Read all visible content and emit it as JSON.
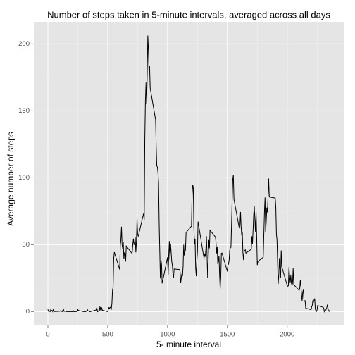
{
  "chart_data": {
    "type": "line",
    "title": "Number of steps taken in 5-minute intervals, averaged across all days",
    "x_label": "5- minute interval",
    "y_label": "Average number of steps",
    "color": "#000000",
    "grid": true,
    "xlim": [
      -117.75,
      2472.75
    ],
    "ylim": [
      -10.3,
      216.5
    ],
    "xticks": [
      0,
      500,
      1000,
      1500,
      2000
    ],
    "yticks": [
      0,
      50,
      100,
      150,
      200
    ],
    "xminor": [
      250,
      750,
      1250,
      1750,
      2250
    ],
    "yminor": [
      25,
      75,
      125,
      175
    ],
    "x": [
      0,
      5,
      10,
      15,
      20,
      25,
      30,
      35,
      40,
      45,
      50,
      55,
      100,
      105,
      110,
      115,
      120,
      125,
      130,
      135,
      140,
      145,
      150,
      155,
      200,
      205,
      210,
      215,
      220,
      225,
      230,
      235,
      240,
      245,
      250,
      255,
      300,
      305,
      310,
      315,
      320,
      325,
      330,
      335,
      340,
      345,
      350,
      355,
      400,
      405,
      410,
      415,
      420,
      425,
      430,
      435,
      440,
      445,
      450,
      455,
      500,
      505,
      510,
      515,
      520,
      525,
      530,
      535,
      540,
      545,
      550,
      555,
      600,
      605,
      610,
      615,
      620,
      625,
      630,
      635,
      640,
      645,
      650,
      655,
      700,
      705,
      710,
      715,
      720,
      725,
      730,
      735,
      740,
      745,
      750,
      755,
      800,
      805,
      810,
      815,
      820,
      825,
      830,
      835,
      840,
      845,
      850,
      855,
      900,
      905,
      910,
      915,
      920,
      925,
      930,
      935,
      940,
      945,
      950,
      955,
      1000,
      1005,
      1010,
      1015,
      1020,
      1025,
      1030,
      1035,
      1040,
      1045,
      1050,
      1055,
      1100,
      1105,
      1110,
      1115,
      1120,
      1125,
      1130,
      1135,
      1140,
      1145,
      1150,
      1155,
      1200,
      1205,
      1210,
      1215,
      1220,
      1225,
      1230,
      1235,
      1240,
      1245,
      1250,
      1255,
      1300,
      1305,
      1310,
      1315,
      1320,
      1325,
      1330,
      1335,
      1340,
      1345,
      1350,
      1355,
      1400,
      1405,
      1410,
      1415,
      1420,
      1425,
      1430,
      1435,
      1440,
      1445,
      1450,
      1455,
      1500,
      1505,
      1510,
      1515,
      1520,
      1525,
      1530,
      1535,
      1540,
      1545,
      1550,
      1555,
      1600,
      1605,
      1610,
      1615,
      1620,
      1625,
      1630,
      1635,
      1640,
      1645,
      1650,
      1655,
      1700,
      1705,
      1710,
      1715,
      1720,
      1725,
      1730,
      1735,
      1740,
      1745,
      1750,
      1755,
      1800,
      1805,
      1810,
      1815,
      1820,
      1825,
      1830,
      1835,
      1840,
      1845,
      1850,
      1855,
      1900,
      1905,
      1910,
      1915,
      1920,
      1925,
      1930,
      1935,
      1940,
      1945,
      1950,
      1955,
      2000,
      2005,
      2010,
      2015,
      2020,
      2025,
      2030,
      2035,
      2040,
      2045,
      2050,
      2055,
      2100,
      2105,
      2110,
      2115,
      2120,
      2125,
      2130,
      2135,
      2140,
      2145,
      2150,
      2155,
      2200,
      2205,
      2210,
      2215,
      2220,
      2225,
      2230,
      2235,
      2240,
      2245,
      2250,
      2255,
      2300,
      2305,
      2310,
      2315,
      2320,
      2325,
      2330,
      2335,
      2340,
      2345,
      2350,
      2355
    ],
    "values": [
      1.7,
      0.3,
      0.1,
      0.2,
      0.1,
      2.1,
      0.5,
      0.9,
      0,
      1.5,
      0.3,
      0.1,
      0.3,
      0.7,
      0.2,
      0.3,
      0,
      1.1,
      1.8,
      0.2,
      0.2,
      0.4,
      0.3,
      0,
      0,
      0,
      1.1,
      0,
      0,
      0.1,
      0,
      0.2,
      0,
      0,
      1.5,
      0.9,
      0,
      0,
      0,
      0,
      0.2,
      0.6,
      1.6,
      0.6,
      0.5,
      0.1,
      0,
      0,
      1.2,
      0.9,
      2.6,
      0,
      0.3,
      0.4,
      4.1,
      0.7,
      3.5,
      0.8,
      3.1,
      1.1,
      0,
      1.6,
      3,
      2.2,
      3.3,
      3,
      2.1,
      6.1,
      16,
      18.3,
      39.5,
      44.5,
      31.5,
      49.3,
      53.8,
      63.5,
      50,
      47.1,
      52.2,
      39.3,
      44,
      44.2,
      37.4,
      49,
      43.8,
      44.4,
      50.5,
      54.5,
      49.9,
      51,
      55.7,
      44.3,
      52.3,
      69.5,
      57.8,
      56.2,
      73.4,
      68.2,
      129.4,
      157.5,
      171.2,
      155.4,
      177.3,
      206.2,
      195.9,
      179.6,
      183.4,
      167,
      143.5,
      124,
      109.1,
      108.1,
      103.7,
      96,
      66.2,
      45.2,
      24.8,
      38.8,
      35,
      21.1,
      40.6,
      27,
      42.4,
      52.7,
      38.9,
      50.8,
      44.3,
      37.4,
      34.7,
      28.3,
      25.1,
      31.9,
      31.4,
      29.7,
      21.3,
      25.5,
      28.4,
      26.5,
      33.4,
      50,
      42,
      44.6,
      46,
      59.2,
      63.9,
      87.7,
      94.8,
      92.8,
      63.4,
      50.2,
      54.5,
      32.4,
      26.5,
      37.7,
      45.1,
      67.3,
      42.3,
      39.9,
      43.3,
      41,
      46.2,
      56.4,
      42.8,
      25.1,
      40,
      53.5,
      47.3,
      60.8,
      55.8,
      52,
      43.6,
      48.7,
      35.5,
      37.5,
      41.8,
      27.5,
      17.1,
      26.1,
      43.6,
      43.8,
      30,
      36.1,
      35.5,
      38.8,
      46,
      47.8,
      48.1,
      65.3,
      82.9,
      98.7,
      102.1,
      84,
      62.1,
      64.1,
      74.5,
      63.2,
      56.9,
      59.8,
      43.9,
      38.6,
      44.7,
      45.5,
      46.2,
      43.7,
      46.6,
      56.3,
      50.7,
      61.2,
      72.7,
      78.9,
      68.9,
      59.7,
      75.1,
      56.5,
      34.8,
      37.5,
      40.7,
      58,
      74.7,
      85.3,
      59.3,
      67.8,
      77.7,
      74.2,
      85.3,
      99.5,
      86.6,
      85.6,
      84.9,
      77.8,
      58,
      53.4,
      36.3,
      20.7,
      27.4,
      40,
      30.2,
      25.5,
      45.7,
      33.5,
      19.6,
      19,
      19.3,
      33.3,
      26.8,
      21.2,
      27.3,
      21.3,
      19.5,
      21.3,
      32.3,
      20.2,
      15.9,
      17.2,
      23.5,
      19.2,
      12.5,
      8,
      14.7,
      16.3,
      8.7,
      7.8,
      8.1,
      2.6,
      1.5,
      3.7,
      4.8,
      8.5,
      7.1,
      8.7,
      9.8,
      2.2,
      0.3,
      0.1,
      1.6,
      4.6,
      3.3,
      2.8,
      0,
      0.8,
      1,
      1.6,
      2.6,
      4.7,
      3.3,
      0.6,
      0.2,
      1.1
    ]
  }
}
